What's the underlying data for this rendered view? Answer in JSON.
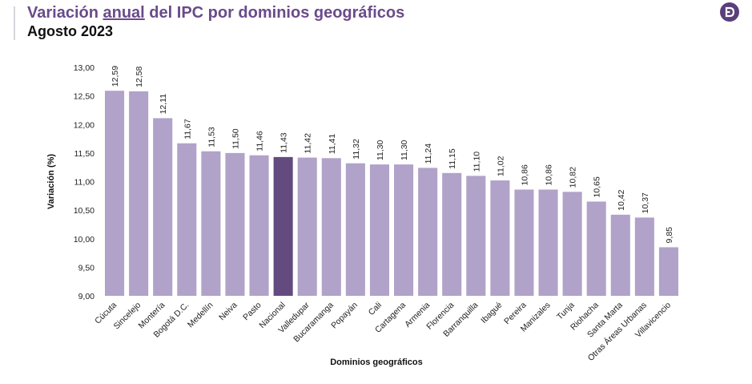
{
  "header": {
    "title_pre": "Variación ",
    "title_underlined": "anual",
    "title_post": " del IPC por dominios geográficos",
    "subtitle": "Agosto 2023",
    "logo_icon": "dane-logo-icon"
  },
  "colors": {
    "title": "#6a4b8a",
    "bar": "#b1a2c9",
    "highlight_bar": "#634b7f",
    "logo": "#5b3f7a"
  },
  "chart_data": {
    "type": "bar",
    "xlabel": "Dominios geográficos",
    "ylabel": "Variación (%)",
    "ylim": [
      9.0,
      13.0
    ],
    "yticks": [
      9.0,
      9.5,
      10.0,
      10.5,
      11.0,
      11.5,
      12.0,
      12.5,
      13.0
    ],
    "ytick_labels": [
      "9,00",
      "9,50",
      "10,00",
      "10,50",
      "11,00",
      "11,50",
      "12,00",
      "12,50",
      "13,00"
    ],
    "highlight": "Nacional",
    "grid": false,
    "legend": "none",
    "categories": [
      "Cúcuta",
      "Sincelejo",
      "Montería",
      "Bogotá D.C.",
      "Medellín",
      "Neiva",
      "Pasto",
      "Nacional",
      "Valledupar",
      "Bucaramanga",
      "Popayán",
      "Cali",
      "Cartagena",
      "Armenia",
      "Florencia",
      "Barranquilla",
      "Ibagué",
      "Pereira",
      "Manizales",
      "Tunja",
      "Riohacha",
      "Santa Marta",
      "Otras Áreas Urbanas",
      "Villavicencio"
    ],
    "values": [
      12.59,
      12.58,
      12.11,
      11.67,
      11.53,
      11.5,
      11.46,
      11.43,
      11.42,
      11.41,
      11.32,
      11.3,
      11.3,
      11.24,
      11.15,
      11.1,
      11.02,
      10.86,
      10.86,
      10.82,
      10.65,
      10.42,
      10.37,
      9.85
    ],
    "value_labels": [
      "12,59",
      "12,58",
      "12,11",
      "11,67",
      "11,53",
      "11,50",
      "11,46",
      "11,43",
      "11,42",
      "11,41",
      "11,32",
      "11,30",
      "11,30",
      "11,24",
      "11,15",
      "11,10",
      "11,02",
      "10,86",
      "10,86",
      "10,82",
      "10,65",
      "10,42",
      "10,37",
      "9,85"
    ]
  }
}
